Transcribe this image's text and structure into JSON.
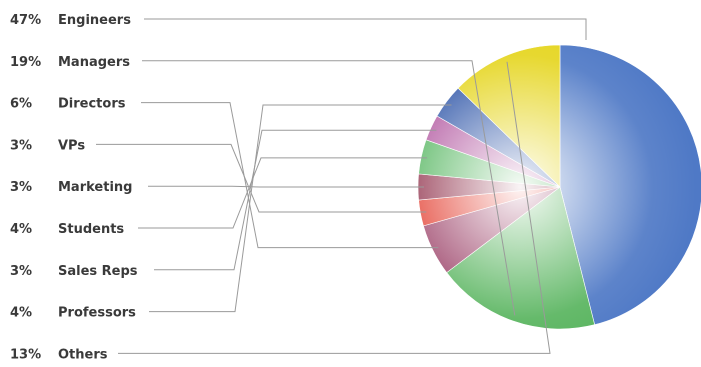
{
  "chart_data": {
    "type": "pie",
    "title": "",
    "slices": [
      {
        "label": "Engineers",
        "value_label": "47%",
        "value": 47,
        "color": "#4f79c6"
      },
      {
        "label": "Managers",
        "value_label": "19%",
        "value": 19,
        "color": "#58b45e"
      },
      {
        "label": "Directors",
        "value_label": "6%",
        "value": 6,
        "color": "#9a3f66"
      },
      {
        "label": "VPs",
        "value_label": "3%",
        "value": 3,
        "color": "#e23a2c"
      },
      {
        "label": "Marketing",
        "value_label": "3%",
        "value": 3,
        "color": "#8c2a45"
      },
      {
        "label": "Students",
        "value_label": "4%",
        "value": 4,
        "color": "#4fb35a"
      },
      {
        "label": "Sales Reps",
        "value_label": "3%",
        "value": 3,
        "color": "#b0549e"
      },
      {
        "label": "Professors",
        "value_label": "4%",
        "value": 4,
        "color": "#2f56a8"
      },
      {
        "label": "Others",
        "value_label": "13%",
        "value": 13,
        "color": "#e5d51e"
      }
    ],
    "start_angle_deg": 0,
    "direction": "clockwise",
    "legend_position": "left"
  }
}
